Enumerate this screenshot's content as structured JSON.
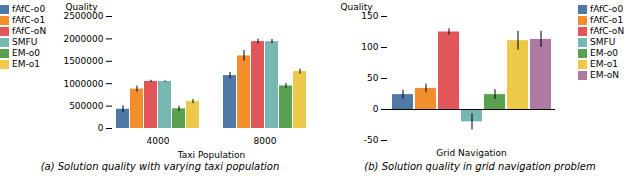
{
  "chart_data": [
    {
      "type": "bar",
      "title": "(a) Solution quality with varying taxi population",
      "xlabel": "Taxi Population",
      "ylabel": "Quality",
      "categories": [
        "4000",
        "8000"
      ],
      "series": [
        {
          "name": "fAfC-o0",
          "values": [
            430000,
            1180000
          ],
          "errors": [
            80000,
            70000
          ]
        },
        {
          "name": "fAfC-o1",
          "values": [
            880000,
            1620000
          ],
          "errors": [
            70000,
            120000
          ]
        },
        {
          "name": "fAfC-oN",
          "values": [
            1050000,
            1940000
          ],
          "errors": [
            25000,
            55000
          ]
        },
        {
          "name": "SMFU",
          "values": [
            1050000,
            1940000
          ],
          "errors": [
            15000,
            45000
          ]
        },
        {
          "name": "EM-o0",
          "values": [
            440000,
            950000
          ],
          "errors": [
            55000,
            55000
          ]
        },
        {
          "name": "EM-o1",
          "values": [
            600000,
            1270000
          ],
          "errors": [
            45000,
            55000
          ]
        }
      ],
      "ylim": [
        0,
        2500000
      ],
      "yticks": [
        0,
        500000,
        1000000,
        1500000,
        2000000,
        2500000
      ],
      "legend": "upper left"
    },
    {
      "type": "bar",
      "title": "(b) Solution quality in grid navigation problem",
      "ylabel": "Quality",
      "categories": [
        "Grid Navigation"
      ],
      "series": [
        {
          "name": "fAfC-o0",
          "values": [
            24
          ],
          "errors": [
            7
          ]
        },
        {
          "name": "fAfC-o1",
          "values": [
            34
          ],
          "errors": [
            7
          ]
        },
        {
          "name": "fAfC-oN",
          "values": [
            125
          ],
          "errors": [
            5
          ]
        },
        {
          "name": "SMFU",
          "values": [
            -20
          ],
          "errors": [
            13
          ]
        },
        {
          "name": "EM-o0",
          "values": [
            24
          ],
          "errors": [
            8
          ]
        },
        {
          "name": "EM-o1",
          "values": [
            111
          ],
          "errors": [
            15
          ]
        },
        {
          "name": "EM-oN",
          "values": [
            113
          ],
          "errors": [
            13
          ]
        }
      ],
      "ylim": [
        -50,
        150
      ],
      "yticks": [
        -50,
        0,
        50,
        100,
        150
      ],
      "legend": "upper right"
    }
  ]
}
